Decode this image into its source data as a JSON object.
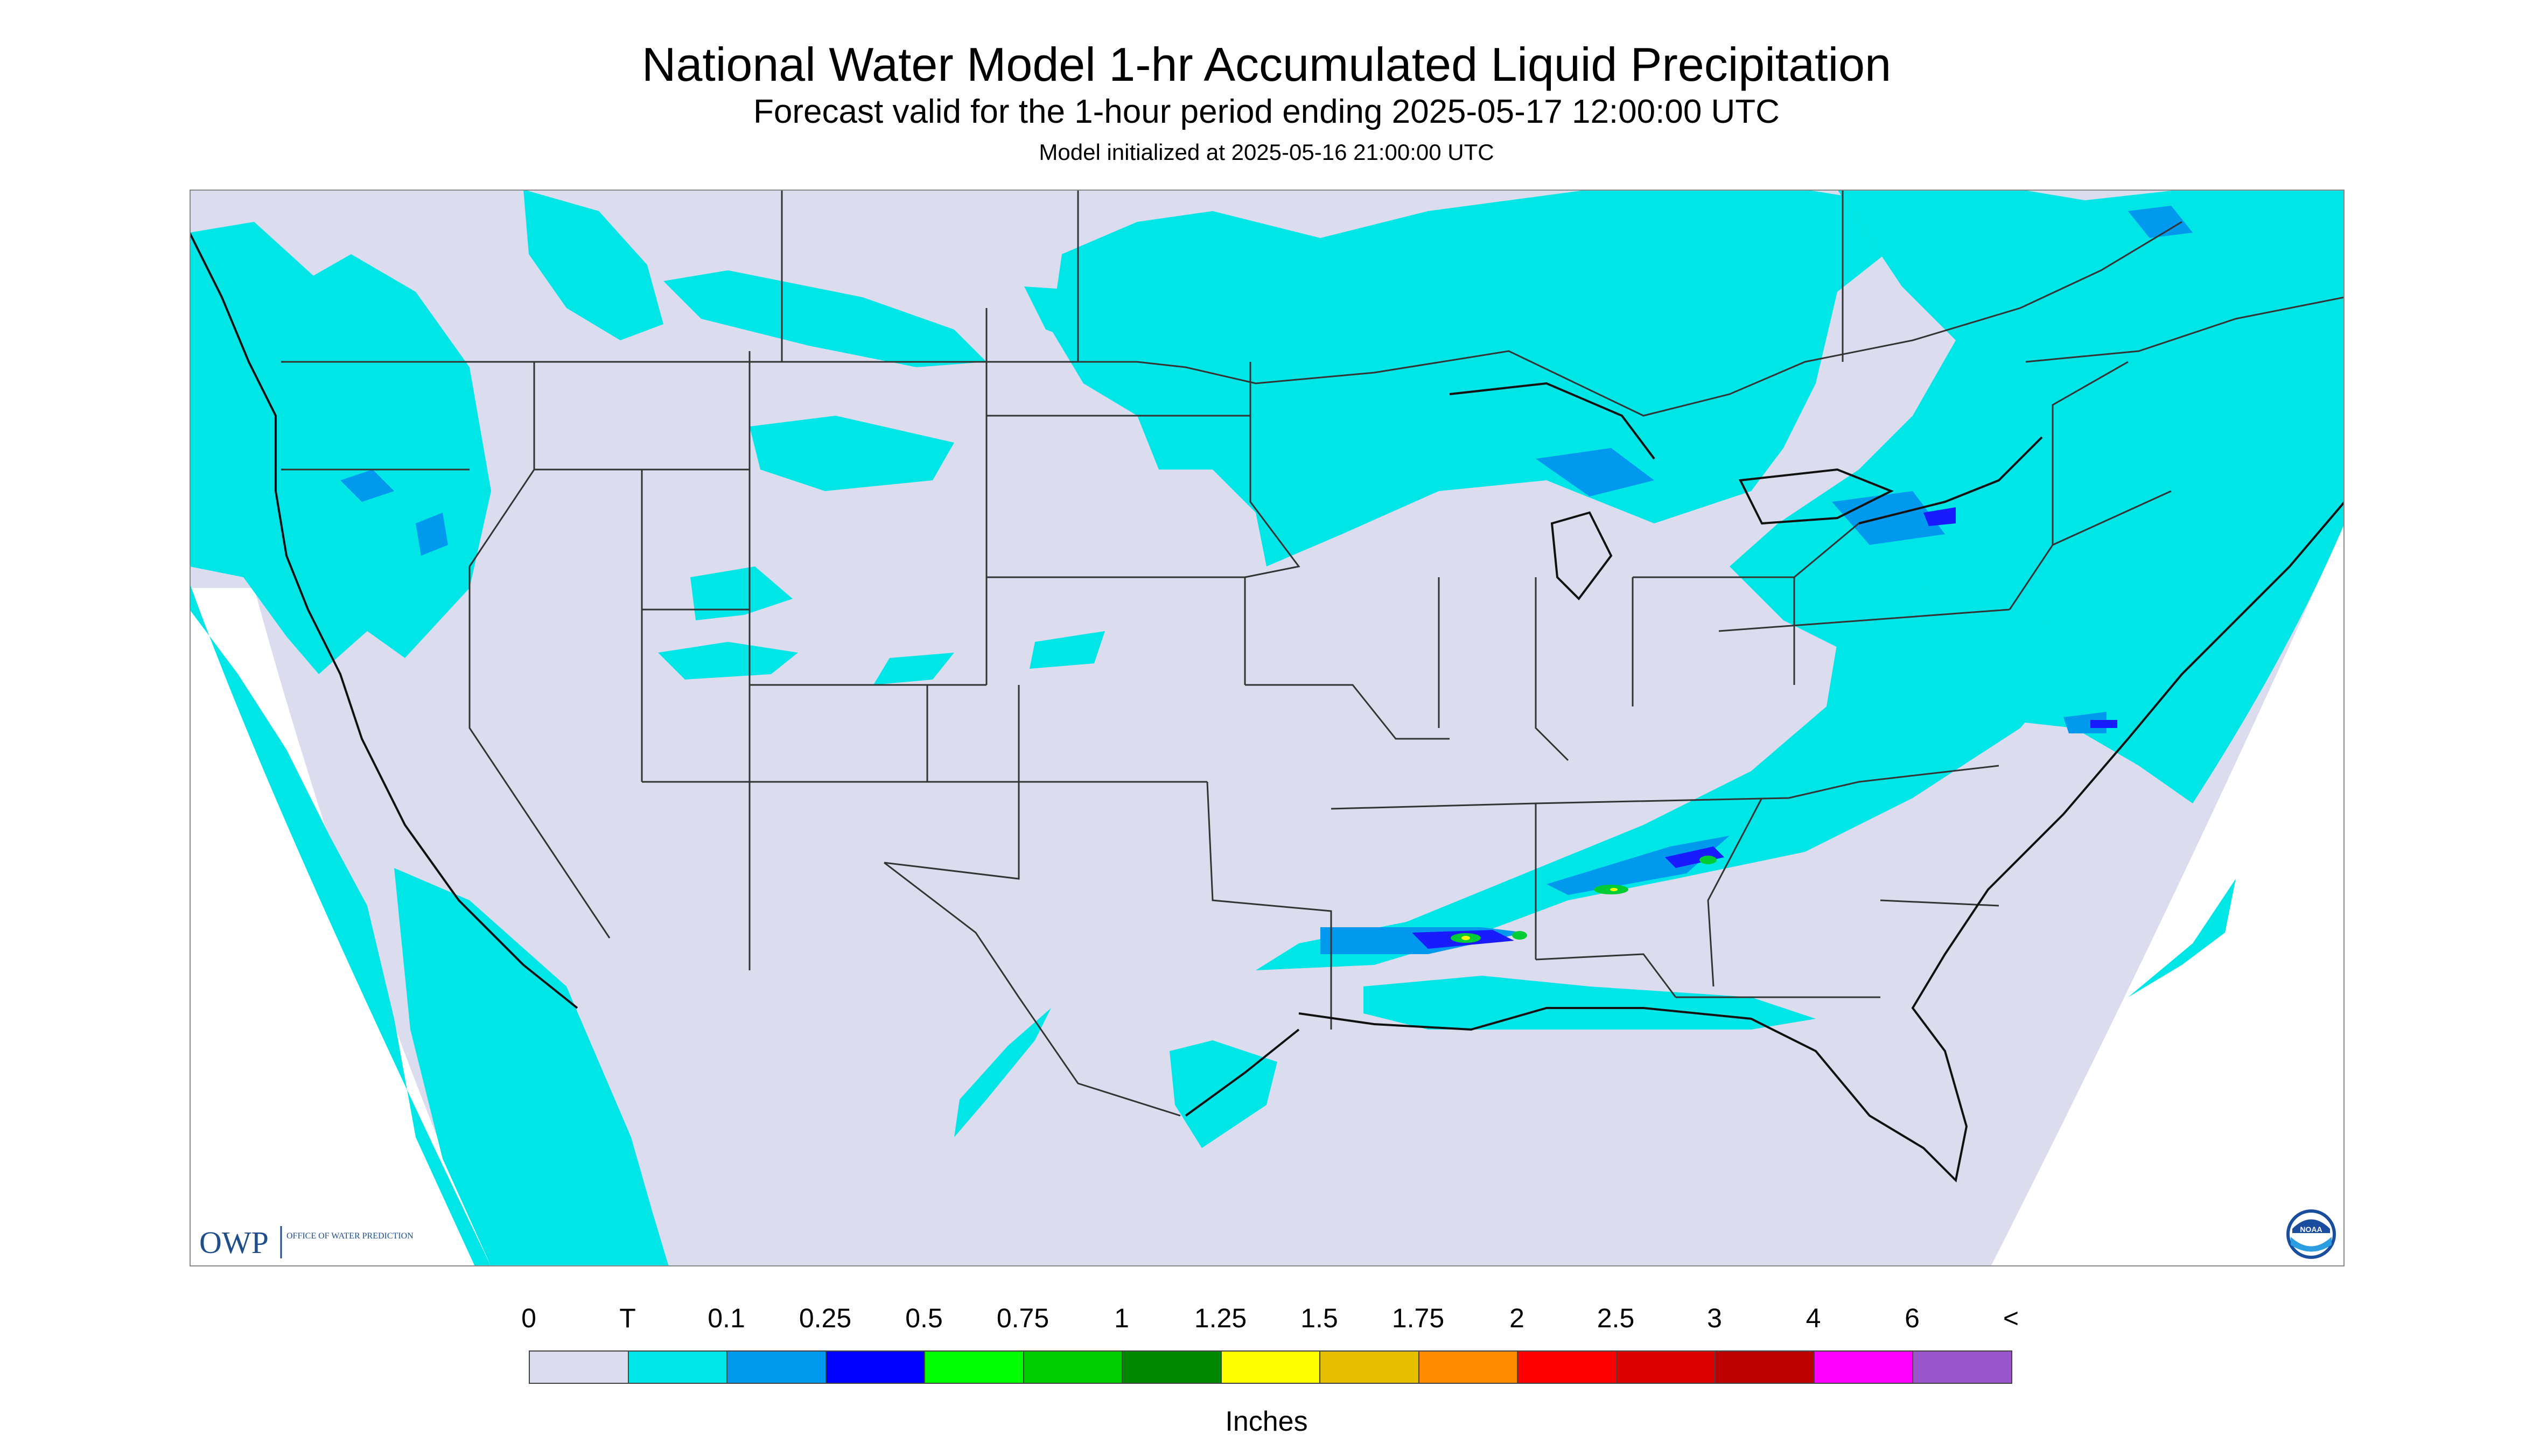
{
  "header": {
    "title": "National Water Model 1-hr Accumulated Liquid Precipitation",
    "subtitle": "Forecast valid for the 1-hour period ending 2025-05-17 12:00:00 UTC",
    "init_line": "Model initialized at 2025-05-16 21:00:00 UTC"
  },
  "map": {
    "background_color": "#dcdcef",
    "water_color": "#ffffff",
    "boundary_color": "#333333",
    "precip_colors": {
      "trace": "#00e5e5",
      "low": "#0099ee",
      "mid": "#1a1aff",
      "green": "#00cc33",
      "yellow": "#ffff00"
    }
  },
  "logos": {
    "owp_text": "OWP",
    "owp_subtext": "OFFICE OF WATER PREDICTION",
    "noaa_text": "NOAA"
  },
  "legend": {
    "ticks": [
      "0",
      "T",
      "0.1",
      "0.25",
      "0.5",
      "0.75",
      "1",
      "1.25",
      "1.5",
      "1.75",
      "2",
      "2.5",
      "3",
      "4",
      "6",
      "<"
    ],
    "colors": [
      "#dcdcef",
      "#00e5e5",
      "#0099ee",
      "#0000ff",
      "#00ff00",
      "#00cc00",
      "#008800",
      "#ffff00",
      "#e5be00",
      "#ff8c00",
      "#ff0000",
      "#dd0000",
      "#bb0000",
      "#ff00ff",
      "#9955cc"
    ],
    "units": "Inches"
  }
}
